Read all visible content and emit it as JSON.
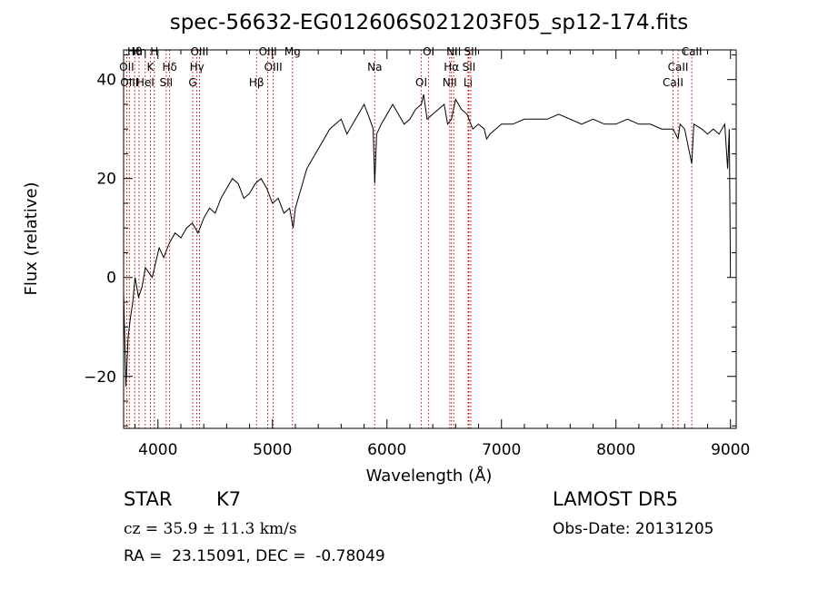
{
  "chart_data": {
    "type": "line",
    "title": "spec-56632-EG012606S021203F05_sp12-174.fits",
    "xlabel": "Wavelength (Å)",
    "ylabel": "Flux (relative)",
    "xlim": [
      3700,
      9050
    ],
    "ylim": [
      -30.5,
      46
    ],
    "xticks": [
      4000,
      5000,
      6000,
      7000,
      8000,
      9000
    ],
    "yticks": [
      -20,
      0,
      20,
      40
    ],
    "grid": false,
    "line_color": "#000000",
    "marker_color": "#cc0000",
    "series": [
      {
        "x": [
          3700,
          3720,
          3740,
          3760,
          3780,
          3800,
          3830,
          3860,
          3890,
          3920,
          3950,
          3980,
          4010,
          4050,
          4100,
          4150,
          4200,
          4250,
          4300,
          4350,
          4400,
          4450,
          4500,
          4550,
          4600,
          4650,
          4700,
          4750,
          4800,
          4850,
          4900,
          4950,
          5000,
          5050,
          5100,
          5150,
          5180,
          5200,
          5250,
          5300,
          5350,
          5400,
          5450,
          5500,
          5550,
          5600,
          5650,
          5700,
          5750,
          5800,
          5850,
          5880,
          5893,
          5910,
          5950,
          6000,
          6050,
          6100,
          6150,
          6200,
          6250,
          6300,
          6320,
          6350,
          6400,
          6450,
          6500,
          6530,
          6563,
          6600,
          6650,
          6700,
          6750,
          6800,
          6850,
          6870,
          6900,
          6950,
          7000,
          7100,
          7200,
          7300,
          7400,
          7500,
          7600,
          7700,
          7800,
          7900,
          8000,
          8100,
          8200,
          8300,
          8400,
          8500,
          8542,
          8560,
          8600,
          8662,
          8680,
          8750,
          8800,
          8850,
          8900,
          8950,
          8975,
          8990,
          9000
        ],
        "y": [
          -3,
          -22,
          -12,
          -8,
          -5,
          0,
          -4,
          -2,
          2,
          1,
          0,
          3,
          6,
          4,
          7,
          9,
          8,
          10,
          11,
          9,
          12,
          14,
          13,
          16,
          18,
          20,
          19,
          16,
          17,
          19,
          20,
          18,
          15,
          16,
          13,
          14,
          10,
          14,
          18,
          22,
          24,
          26,
          28,
          30,
          31,
          32,
          29,
          31,
          33,
          35,
          32,
          30,
          19,
          29,
          31,
          33,
          35,
          33,
          31,
          32,
          34,
          35,
          37,
          32,
          33,
          34,
          35,
          31,
          32,
          36,
          34,
          33,
          30,
          31,
          30,
          28,
          29,
          30,
          31,
          31,
          32,
          32,
          32,
          33,
          32,
          31,
          32,
          31,
          31,
          32,
          31,
          31,
          30,
          30,
          28,
          31,
          30,
          23,
          31,
          30,
          29,
          30,
          29,
          31,
          22,
          30,
          0
        ]
      }
    ],
    "lines": [
      {
        "name": "Hθ",
        "x": 3797
      },
      {
        "name": "OII",
        "x": 3727
      },
      {
        "name": "OIII",
        "x": 3750
      },
      {
        "name": "Hη",
        "x": 3835
      },
      {
        "name": "K",
        "x": 3934
      },
      {
        "name": "HeI",
        "x": 3889
      },
      {
        "name": "H",
        "x": 3968
      },
      {
        "name": "Hδ",
        "x": 4102
      },
      {
        "name": "SII",
        "x": 4072
      },
      {
        "name": "OIII",
        "x": 4363
      },
      {
        "name": "Hγ",
        "x": 4340
      },
      {
        "name": "G",
        "x": 4304
      },
      {
        "name": "OIII",
        "x": 4959
      },
      {
        "name": "OIII",
        "x": 5007
      },
      {
        "name": "Hβ",
        "x": 4861
      },
      {
        "name": "Mg",
        "x": 5175
      },
      {
        "name": "Na",
        "x": 5893
      },
      {
        "name": "OI",
        "x": 6300
      },
      {
        "name": "OI",
        "x": 6364
      },
      {
        "name": "Hα",
        "x": 6563
      },
      {
        "name": "NII",
        "x": 6548
      },
      {
        "name": "NII",
        "x": 6583
      },
      {
        "name": "SII",
        "x": 6716
      },
      {
        "name": "Li",
        "x": 6708
      },
      {
        "name": "SII",
        "x": 6731
      },
      {
        "name": "CaII",
        "x": 8542
      },
      {
        "name": "CaII",
        "x": 8498
      },
      {
        "name": "CaII",
        "x": 8662
      }
    ]
  },
  "info": {
    "class": "STAR",
    "subclass": "K7",
    "cz": "cz = 35.9 ± 11.3 km/s",
    "radec": "RA =  23.15091, DEC =  -0.78049",
    "survey": "LAMOST DR5",
    "obsdate": "Obs-Date: 20131205"
  }
}
